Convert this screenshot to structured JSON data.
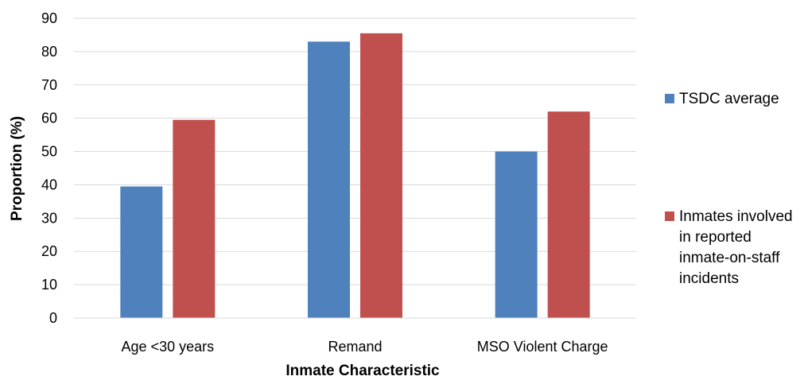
{
  "chart_data": {
    "type": "bar",
    "title": "",
    "xlabel": "Inmate Characteristic",
    "ylabel": "Proportion (%)",
    "ylim": [
      0,
      90
    ],
    "yticks": [
      0,
      10,
      20,
      30,
      40,
      50,
      60,
      70,
      80,
      90
    ],
    "grid": true,
    "legend_position": "right",
    "categories": [
      "Age <30 years",
      "Remand",
      "MSO Violent Charge"
    ],
    "series": [
      {
        "name": "TSDC average",
        "color": "#4f81bd",
        "values": [
          39.5,
          83,
          50
        ]
      },
      {
        "name": "Inmates involved in reported inmate-on-staff incidents",
        "color": "#c0504d",
        "values": [
          59.5,
          85.5,
          62
        ]
      }
    ]
  }
}
